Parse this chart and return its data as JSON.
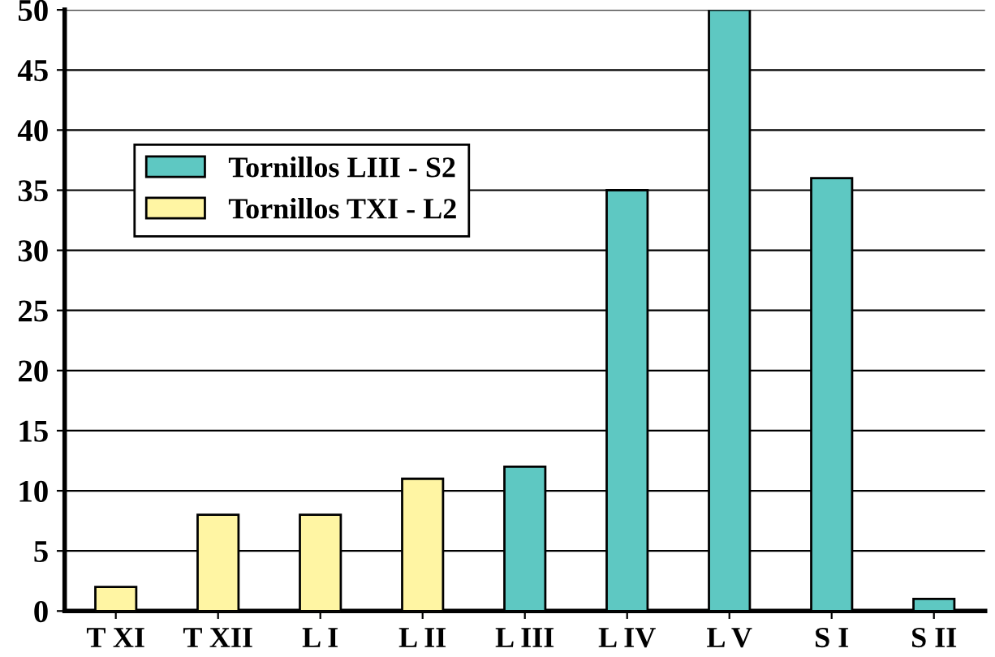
{
  "chart_data": {
    "type": "bar",
    "categories": [
      "T XI",
      "T XII",
      "L I",
      "L II",
      "L III",
      "L IV",
      "L V",
      "S I",
      "S II"
    ],
    "series": [
      {
        "name": "Tornillos LIII - S2",
        "color": "#5ec8c2",
        "values": [
          null,
          null,
          null,
          null,
          12,
          35,
          50,
          36,
          1
        ]
      },
      {
        "name": "Tornillos TXI - L2",
        "color": "#fff5a3",
        "values": [
          2,
          8,
          8,
          11,
          null,
          null,
          null,
          null,
          null
        ]
      }
    ],
    "ylim": [
      0,
      50
    ],
    "yticks": [
      0,
      5,
      10,
      15,
      20,
      25,
      30,
      35,
      40,
      45,
      50
    ],
    "grid": "y",
    "legend": "top left"
  }
}
